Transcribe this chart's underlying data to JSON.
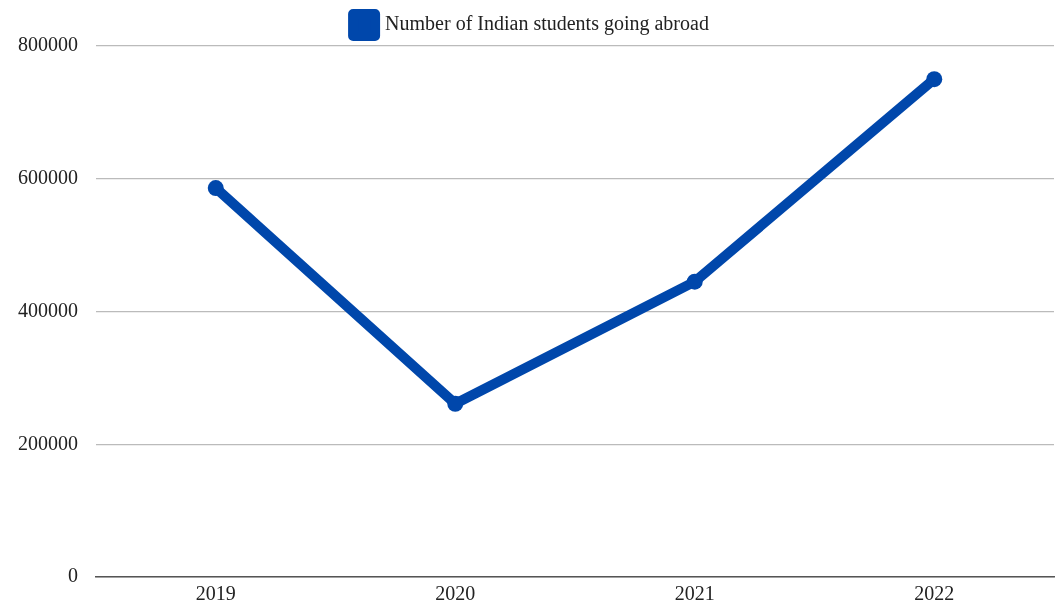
{
  "chart_data": {
    "type": "line",
    "categories": [
      "2019",
      "2020",
      "2021",
      "2022"
    ],
    "series": [
      {
        "name": "Number of Indian students going abroad",
        "color": "#0047ab",
        "values": [
          586000,
          261000,
          445000,
          750000
        ]
      }
    ],
    "ylim": [
      0,
      800000
    ],
    "yticks": [
      0,
      200000,
      400000,
      600000,
      800000
    ],
    "grid": "y",
    "legend": "top",
    "marker": "circle",
    "line_style": "solid"
  }
}
